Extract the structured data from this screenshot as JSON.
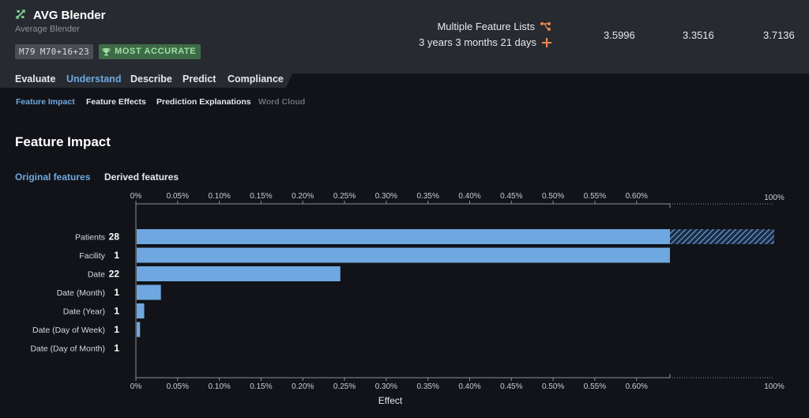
{
  "model": {
    "title": "AVG Blender",
    "subtitle": "Average Blender",
    "badges": [
      "M79",
      "M70+16+23"
    ],
    "accurate_label": "MOST ACCURATE",
    "feature_lists_label": "Multiple Feature Lists",
    "sample_size_label": "3 years 3 months 21 days",
    "metrics": [
      "3.5996",
      "3.3516",
      "3.7136"
    ]
  },
  "tabs": [
    {
      "label": "Evaluate",
      "active": false
    },
    {
      "label": "Understand",
      "active": true
    },
    {
      "label": "Describe",
      "active": false
    },
    {
      "label": "Predict",
      "active": false
    },
    {
      "label": "Compliance",
      "active": false
    }
  ],
  "subtabs": [
    {
      "label": "Feature Impact",
      "state": "active"
    },
    {
      "label": "Feature Effects",
      "state": "normal"
    },
    {
      "label": "Prediction Explanations",
      "state": "normal"
    },
    {
      "label": "Word Cloud",
      "state": "disabled"
    }
  ],
  "section_title": "Feature Impact",
  "feature_toggle": {
    "original": "Original features",
    "derived": "Derived features"
  },
  "colors": {
    "accent": "#6fa8e0",
    "bar": "#6fa8e0",
    "header_bg": "#272a30",
    "page_bg": "#111318",
    "accurate_badge": "#3e6b47"
  },
  "chart_data": {
    "type": "bar",
    "orientation": "horizontal",
    "xlabel": "Effect",
    "xlim": [
      0,
      0.0064
    ],
    "x_ticks": [
      "0%",
      "0.05%",
      "0.10%",
      "0.15%",
      "0.20%",
      "0.25%",
      "0.30%",
      "0.35%",
      "0.40%",
      "0.45%",
      "0.50%",
      "0.55%",
      "0.60%"
    ],
    "x_tick_values": [
      0,
      0.0005,
      0.001,
      0.0015,
      0.002,
      0.0025,
      0.003,
      0.0035,
      0.004,
      0.0045,
      0.005,
      0.0055,
      0.006
    ],
    "overflow_label": "100%",
    "categories": [
      "Patients",
      "Facility",
      "Date",
      "Date (Month)",
      "Date (Year)",
      "Date (Day of Week)",
      "Date (Day of Month)"
    ],
    "counts": [
      "28",
      "1",
      "22",
      "1",
      "1",
      "1",
      "1"
    ],
    "values": [
      0.0064,
      0.0064,
      0.00245,
      0.0003,
      0.0001,
      5e-05,
      0
    ],
    "overflow": [
      true,
      false,
      false,
      false,
      false,
      false,
      false
    ],
    "grid": false
  }
}
